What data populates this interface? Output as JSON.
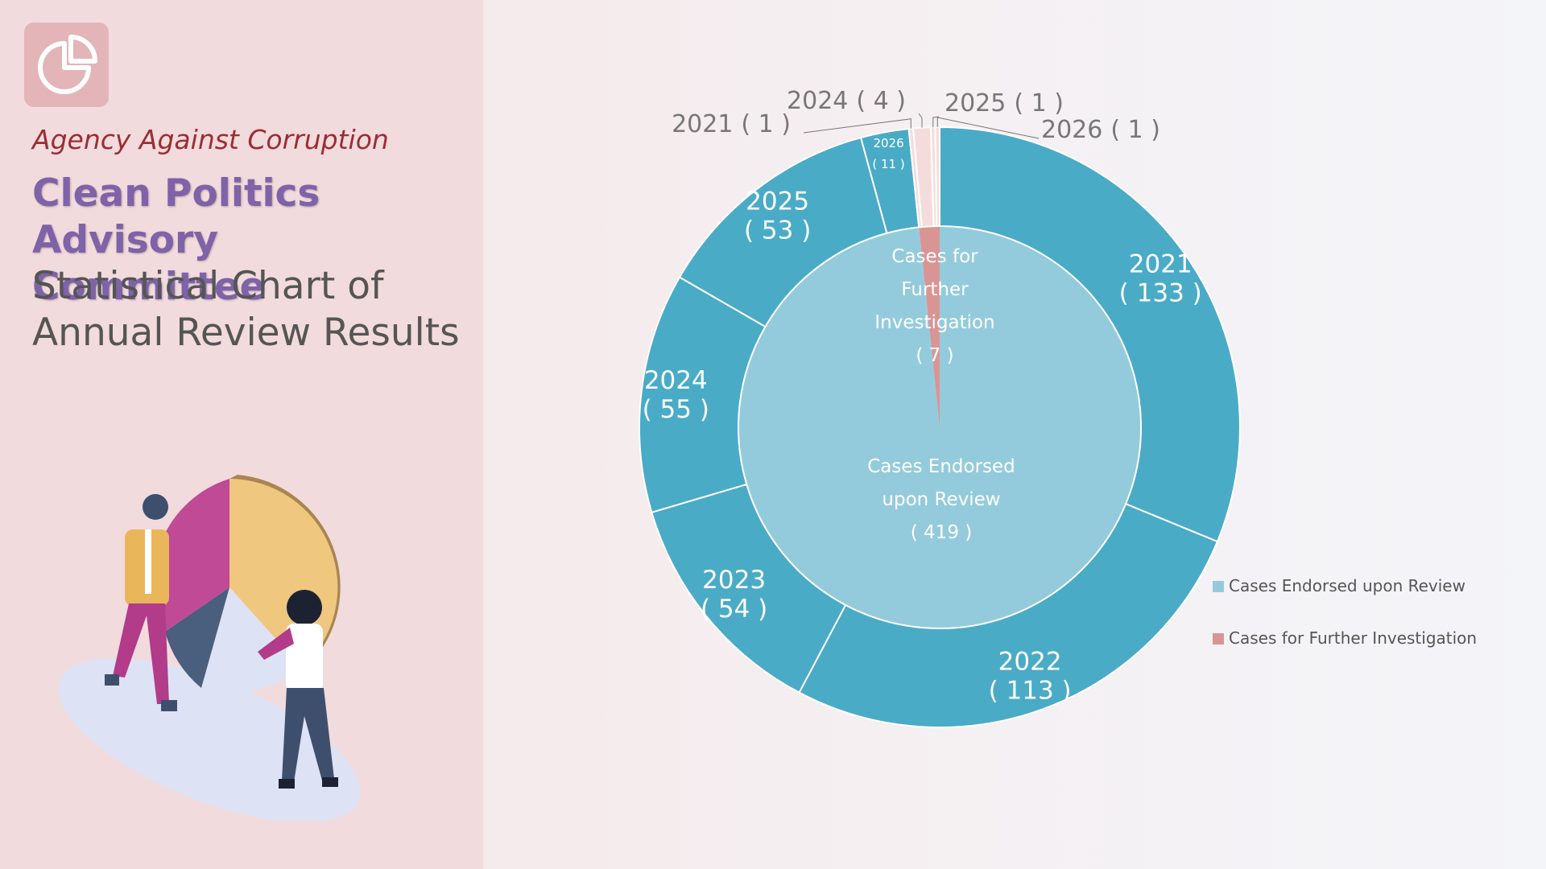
{
  "header": {
    "agency": "Agency Against Corruption",
    "title": "Clean Politics Advisory Committee",
    "subtitle": "Statistical Chart of Annual Review Results"
  },
  "chart_data": {
    "type": "sunburst",
    "legend": "right",
    "series": [
      {
        "name": "Cases Endorsed upon Review",
        "value": 419,
        "value_label": "( 419 )",
        "color": "#94cbdc",
        "ring_color": "#4aabc7",
        "categories": [
          "2021",
          "2022",
          "2023",
          "2024",
          "2025",
          "2026"
        ],
        "values": [
          133,
          113,
          54,
          55,
          53,
          11
        ],
        "value_labels": [
          "( 133 )",
          "( 113 )",
          "( 54 )",
          "( 55 )",
          "( 53 )",
          "( 11 )"
        ]
      },
      {
        "name": "Cases for Further Investigation",
        "value": 7,
        "value_label": "( 7 )",
        "color": "#d99594",
        "ring_color": "#f5dcdc",
        "categories": [
          "2021",
          "2024",
          "2025",
          "2026"
        ],
        "values": [
          1,
          4,
          1,
          1
        ],
        "value_labels": [
          "( 1 )",
          "( 4 )",
          "( 1 )",
          "( 1 )"
        ]
      }
    ]
  }
}
